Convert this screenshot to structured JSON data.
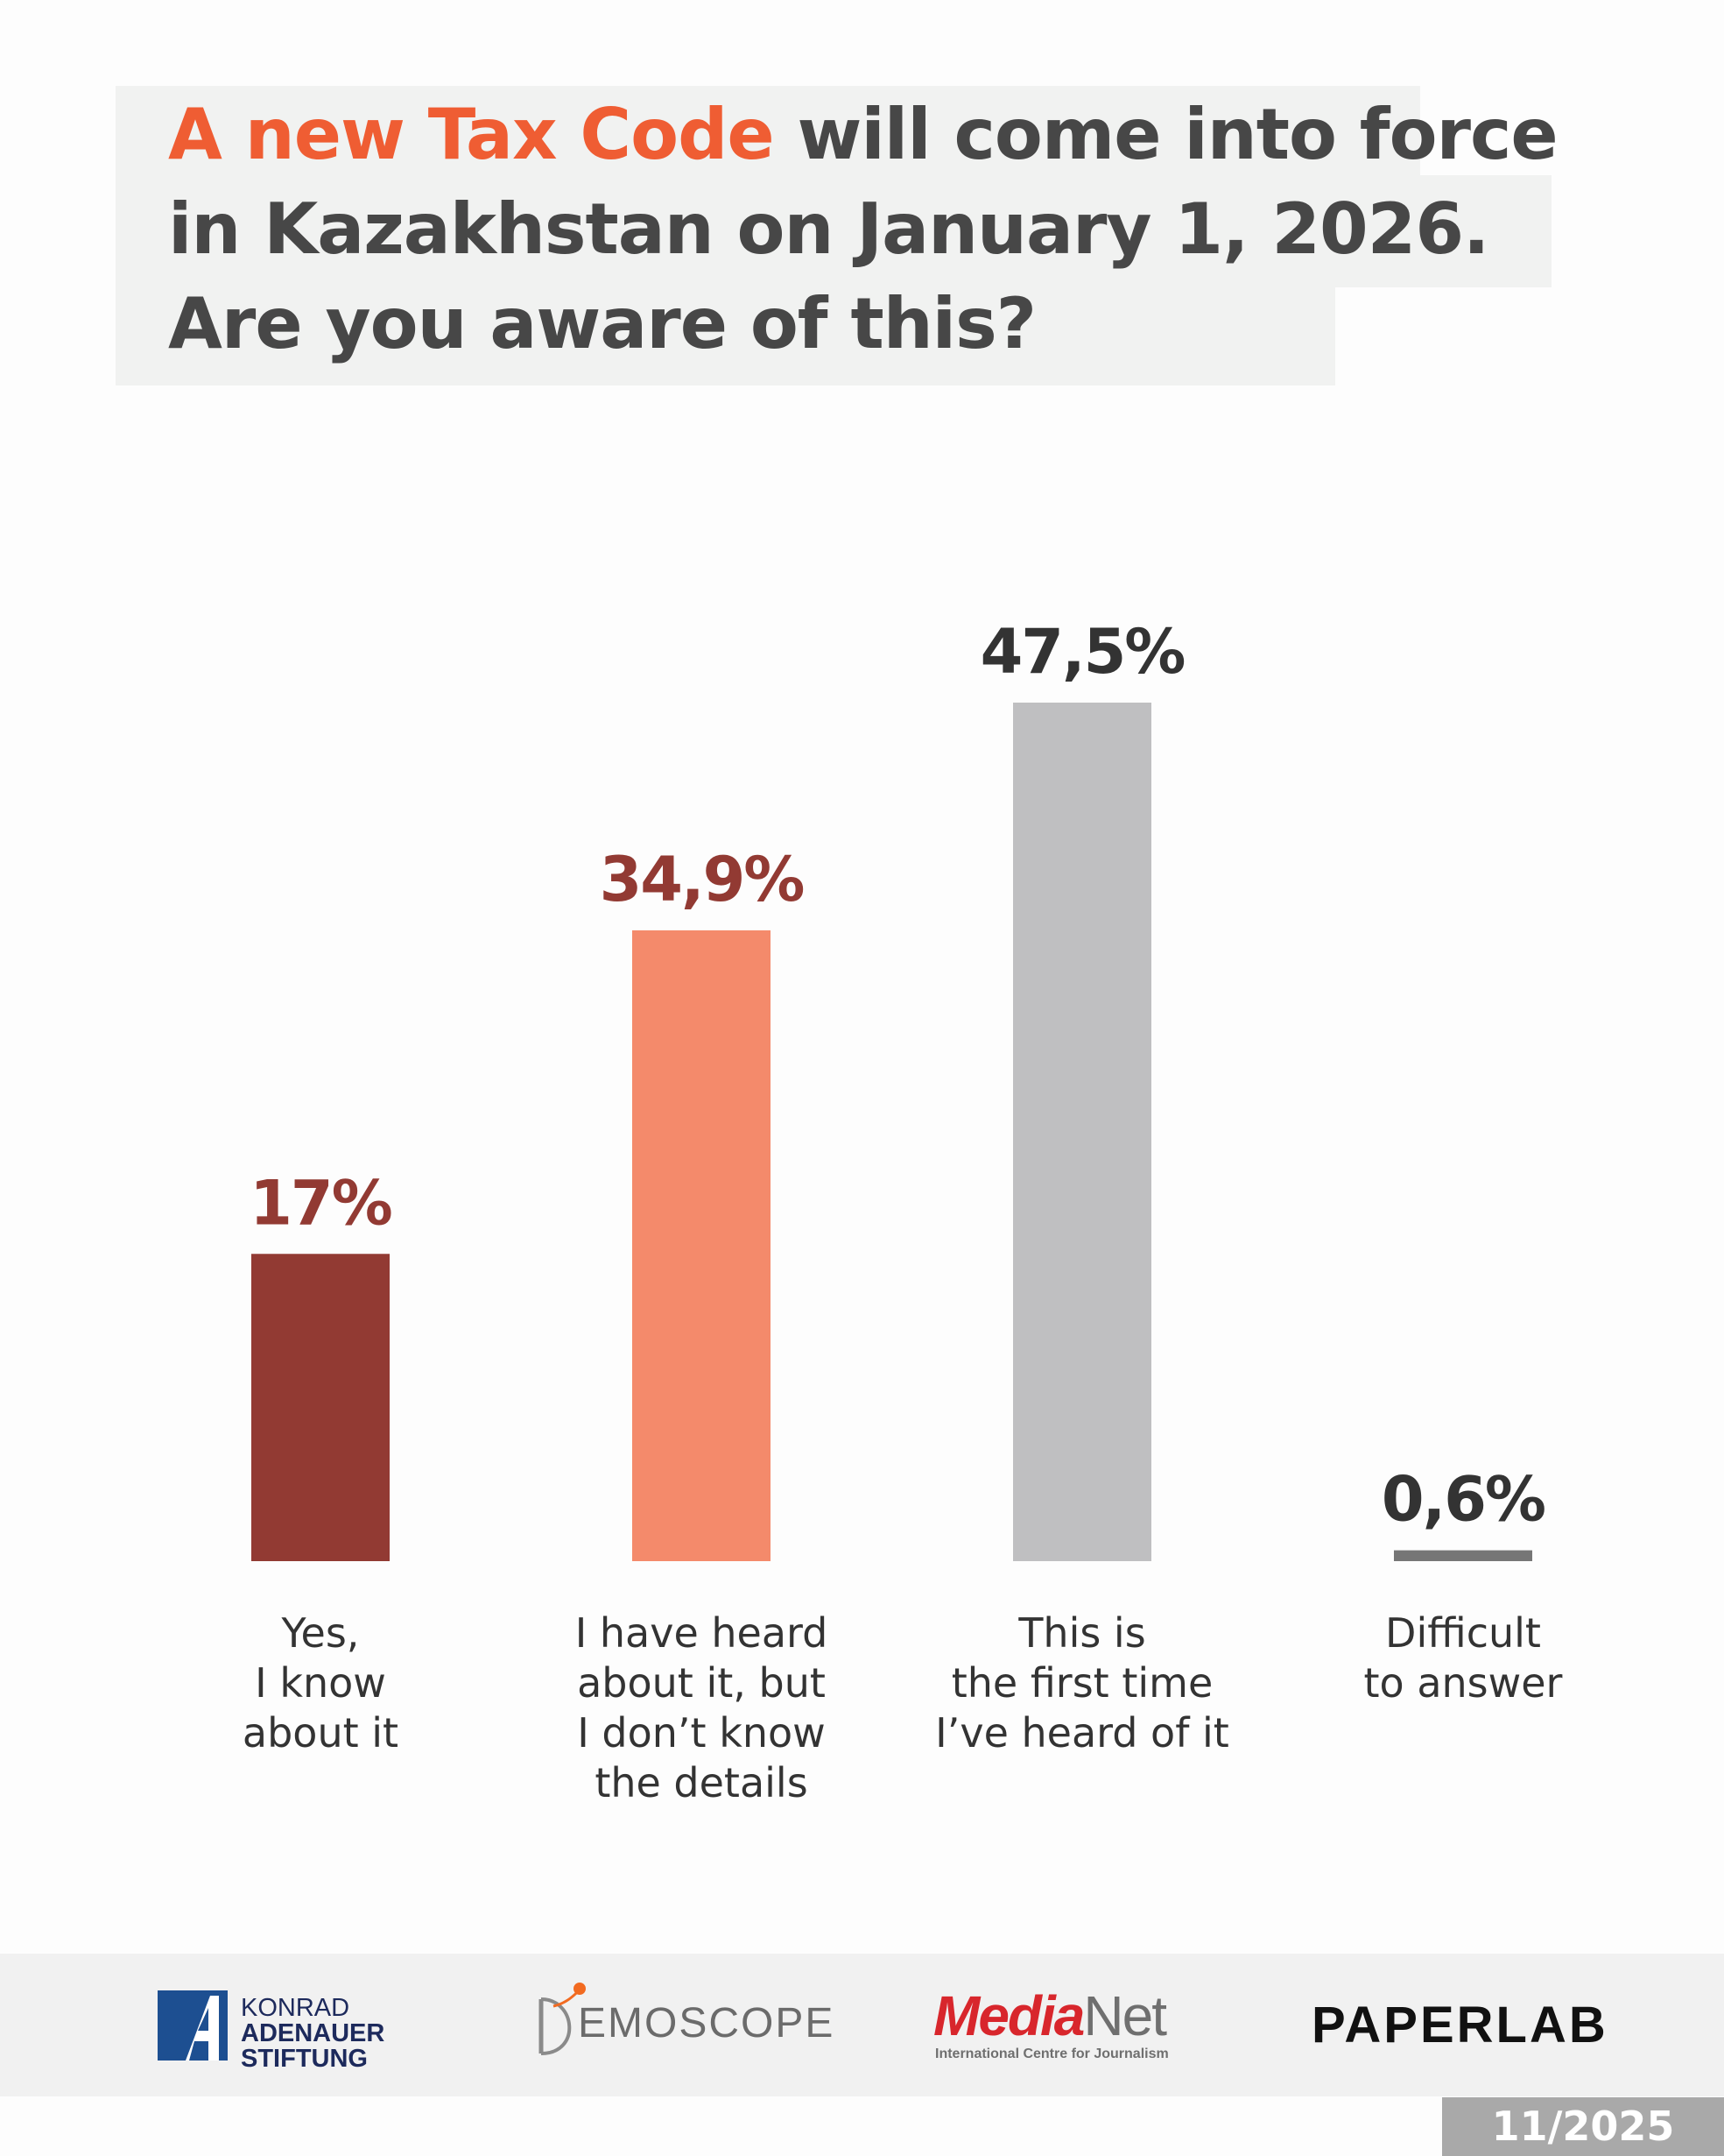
{
  "title": {
    "accent": "A new Tax Code",
    "rest": " will come into force in Kazakhstan on January 1, 2026. Are you aware of this?"
  },
  "colors": {
    "accent": "#ef5d33",
    "bar_dark": "#923a33",
    "bar_salmon": "#f48a6b",
    "bar_grey": "#bfbfc1",
    "bar_darkgrey": "#767676",
    "label_dark": "#923a33",
    "label_black": "#333333"
  },
  "chart_data": {
    "type": "bar",
    "title": "A new Tax Code will come into force in Kazakhstan on January 1, 2026. Are you aware of this?",
    "categories": [
      "Yes,\nI know\nabout it",
      "I have heard\nabout it, but\nI don’t know\nthe details",
      "This is\nthe first time\nI’ve heard of it",
      "Difficult\nto answer"
    ],
    "values": [
      17,
      34.9,
      47.5,
      0.6
    ],
    "value_labels": [
      "17%",
      "34,9%",
      "47,5%",
      "0,6%"
    ],
    "unit": "%",
    "ylim": [
      0,
      47.5
    ],
    "grid": false,
    "xlabel": "",
    "ylabel": ""
  },
  "footer": {
    "kas": [
      "KONRAD",
      "ADENAUER",
      "STIFTUNG"
    ],
    "demoscope": "EMOSCOPE",
    "medianet_media": "Media",
    "medianet_net": "Net",
    "medianet_sub": "International Centre for Journalism",
    "paperlab": "PAPERLAB",
    "date": "11/2025"
  }
}
